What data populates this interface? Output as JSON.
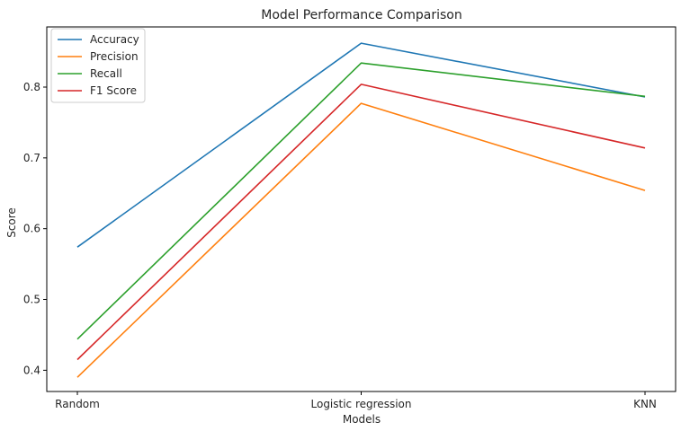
{
  "chart_data": {
    "type": "line",
    "title": "Model Performance Comparison",
    "xlabel": "Models",
    "ylabel": "Score",
    "categories": [
      "Random",
      "Logistic regression",
      "KNN"
    ],
    "ylim": [
      0.37,
      0.885
    ],
    "yticks": [
      "0.4",
      "0.5",
      "0.6",
      "0.7",
      "0.8"
    ],
    "grid": false,
    "legend_position": "top-left",
    "series": [
      {
        "name": "Accuracy",
        "color": "#1f77b4",
        "values": [
          0.574,
          0.862,
          0.786
        ]
      },
      {
        "name": "Precision",
        "color": "#ff7f0e",
        "values": [
          0.39,
          0.777,
          0.654
        ]
      },
      {
        "name": "Recall",
        "color": "#2ca02c",
        "values": [
          0.444,
          0.834,
          0.787
        ]
      },
      {
        "name": "F1 Score",
        "color": "#d62728",
        "values": [
          0.415,
          0.804,
          0.714
        ]
      }
    ]
  }
}
